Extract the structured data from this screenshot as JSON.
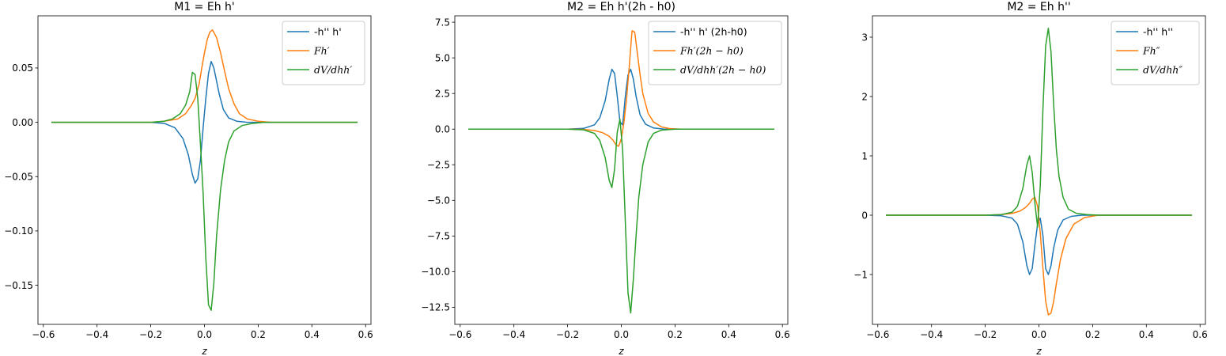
{
  "chart_data": [
    {
      "type": "line",
      "title": "M1 = Eh h'",
      "xlabel": "z",
      "ylabel": "",
      "xlim": [
        -0.62,
        0.62
      ],
      "ylim": [
        -0.186,
        0.098
      ],
      "xticks": [
        -0.6,
        -0.4,
        -0.2,
        0.0,
        0.2,
        0.4,
        0.6
      ],
      "xtick_labels": [
        "−0.6",
        "−0.4",
        "−0.2",
        "0.0",
        "0.2",
        "0.4",
        "0.6"
      ],
      "yticks": [
        -0.15,
        -0.1,
        -0.05,
        0.0,
        0.05
      ],
      "ytick_labels": [
        "−0.15",
        "−0.10",
        "−0.05",
        "0.00",
        "0.05"
      ],
      "legend_position": "top-right",
      "grid": false,
      "series": [
        {
          "name": "-h'' h'",
          "math": false,
          "color": "#1f77b4",
          "x": [
            -0.57,
            -0.2,
            -0.15,
            -0.11,
            -0.08,
            -0.06,
            -0.045,
            -0.035,
            -0.025,
            -0.015,
            -0.005,
            0.005,
            0.015,
            0.025,
            0.035,
            0.045,
            0.055,
            0.07,
            0.09,
            0.12,
            0.16,
            0.2,
            0.57
          ],
          "y": [
            0,
            0,
            -0.001,
            -0.005,
            -0.015,
            -0.03,
            -0.048,
            -0.056,
            -0.052,
            -0.035,
            -0.005,
            0.022,
            0.045,
            0.056,
            0.05,
            0.038,
            0.026,
            0.012,
            0.004,
            0.001,
            0,
            0,
            0
          ]
        },
        {
          "name": "Fh′",
          "math": true,
          "color": "#ff7f0e",
          "x": [
            -0.57,
            -0.2,
            -0.15,
            -0.1,
            -0.07,
            -0.05,
            -0.035,
            -0.02,
            -0.01,
            0.0,
            0.01,
            0.02,
            0.03,
            0.045,
            0.06,
            0.075,
            0.09,
            0.11,
            0.13,
            0.16,
            0.2,
            0.25,
            0.57
          ],
          "y": [
            0,
            0,
            0.001,
            0.003,
            0.008,
            0.015,
            0.022,
            0.035,
            0.05,
            0.064,
            0.076,
            0.083,
            0.085,
            0.078,
            0.064,
            0.047,
            0.031,
            0.017,
            0.008,
            0.003,
            0.001,
            0,
            0
          ]
        },
        {
          "name": "dV/dhh′",
          "math": true,
          "color": "#2ca02c",
          "x": [
            -0.57,
            -0.2,
            -0.15,
            -0.12,
            -0.09,
            -0.07,
            -0.055,
            -0.045,
            -0.035,
            -0.025,
            -0.015,
            -0.005,
            0.005,
            0.015,
            0.025,
            0.035,
            0.045,
            0.06,
            0.075,
            0.09,
            0.11,
            0.14,
            0.18,
            0.22,
            0.57
          ],
          "y": [
            0,
            0,
            0.001,
            0.003,
            0.008,
            0.016,
            0.028,
            0.046,
            0.044,
            0.022,
            -0.02,
            -0.065,
            -0.125,
            -0.168,
            -0.173,
            -0.148,
            -0.105,
            -0.062,
            -0.035,
            -0.018,
            -0.008,
            -0.003,
            -0.001,
            0,
            0
          ]
        }
      ]
    },
    {
      "type": "line",
      "title": "M2 = Eh h'(2h - h0)",
      "xlabel": "z",
      "ylabel": "",
      "xlim": [
        -0.62,
        0.62
      ],
      "ylim": [
        -13.7,
        7.95
      ],
      "xticks": [
        -0.6,
        -0.4,
        -0.2,
        0.0,
        0.2,
        0.4,
        0.6
      ],
      "xtick_labels": [
        "−0.6",
        "−0.4",
        "−0.2",
        "0.0",
        "0.2",
        "0.4",
        "0.6"
      ],
      "yticks": [
        -12.5,
        -10.0,
        -7.5,
        -5.0,
        -2.5,
        0.0,
        2.5,
        5.0,
        7.5
      ],
      "ytick_labels": [
        "−12.5",
        "−10.0",
        "−7.5",
        "−5.0",
        "−2.5",
        "0.0",
        "2.5",
        "5.0",
        "7.5"
      ],
      "legend_position": "top-right",
      "grid": false,
      "series": [
        {
          "name": "-h'' h' (2h-h0)",
          "math": false,
          "color": "#1f77b4",
          "x": [
            -0.57,
            -0.2,
            -0.14,
            -0.1,
            -0.08,
            -0.06,
            -0.045,
            -0.035,
            -0.025,
            -0.015,
            -0.005,
            0.005,
            0.015,
            0.025,
            0.035,
            0.045,
            0.055,
            0.07,
            0.09,
            0.12,
            0.16,
            0.2,
            0.57
          ],
          "y": [
            0,
            0,
            0.05,
            0.3,
            0.8,
            2.0,
            3.5,
            4.2,
            3.9,
            2.3,
            0.5,
            0.3,
            2.3,
            3.8,
            4.2,
            3.5,
            2.3,
            1.0,
            0.35,
            0.08,
            0,
            0,
            0
          ]
        },
        {
          "name": "Fh′(2h − h0)",
          "math": true,
          "color": "#ff7f0e",
          "x": [
            -0.57,
            -0.2,
            -0.14,
            -0.1,
            -0.07,
            -0.045,
            -0.03,
            -0.02,
            -0.01,
            0.0,
            0.01,
            0.02,
            0.03,
            0.04,
            0.05,
            0.06,
            0.07,
            0.08,
            0.1,
            0.12,
            0.15,
            0.18,
            0.22,
            0.57
          ],
          "y": [
            0,
            0,
            -0.02,
            -0.1,
            -0.25,
            -0.5,
            -0.8,
            -1.1,
            -1.2,
            -0.7,
            0.5,
            2.2,
            4.5,
            6.9,
            6.8,
            5.3,
            3.8,
            2.5,
            1.1,
            0.5,
            0.15,
            0.04,
            0,
            0
          ]
        },
        {
          "name": "dV/dhh′(2h − h0)",
          "math": true,
          "color": "#2ca02c",
          "x": [
            -0.57,
            -0.2,
            -0.14,
            -0.1,
            -0.08,
            -0.06,
            -0.045,
            -0.035,
            -0.025,
            -0.015,
            -0.005,
            0.005,
            0.015,
            0.025,
            0.035,
            0.045,
            0.055,
            0.065,
            0.08,
            0.1,
            0.12,
            0.15,
            0.2,
            0.57
          ],
          "y": [
            0,
            0,
            -0.05,
            -0.3,
            -0.8,
            -2.0,
            -3.6,
            -4.1,
            -2.8,
            -0.2,
            0.7,
            -1.5,
            -6.5,
            -11.5,
            -12.9,
            -10.5,
            -7.5,
            -4.8,
            -2.5,
            -0.9,
            -0.3,
            -0.07,
            0,
            0
          ]
        }
      ]
    },
    {
      "type": "line",
      "title": "M2 = Eh h''",
      "xlabel": "z",
      "ylabel": "",
      "xlim": [
        -0.62,
        0.62
      ],
      "ylim": [
        -1.84,
        3.36
      ],
      "xticks": [
        -0.6,
        -0.4,
        -0.2,
        0.0,
        0.2,
        0.4,
        0.6
      ],
      "xtick_labels": [
        "−0.6",
        "−0.4",
        "−0.2",
        "0.0",
        "0.2",
        "0.4",
        "0.6"
      ],
      "yticks": [
        -1,
        0,
        1,
        2,
        3
      ],
      "ytick_labels": [
        "−1",
        "0",
        "1",
        "2",
        "3"
      ],
      "legend_position": "top-right",
      "grid": false,
      "series": [
        {
          "name": "-h'' h''",
          "math": false,
          "color": "#1f77b4",
          "x": [
            -0.57,
            -0.2,
            -0.14,
            -0.1,
            -0.08,
            -0.06,
            -0.045,
            -0.035,
            -0.025,
            -0.015,
            -0.005,
            0.005,
            0.015,
            0.025,
            0.035,
            0.045,
            0.055,
            0.07,
            0.09,
            0.12,
            0.16,
            0.2,
            0.57
          ],
          "y": [
            0,
            0,
            -0.01,
            -0.05,
            -0.15,
            -0.45,
            -0.85,
            -1.0,
            -0.9,
            -0.5,
            -0.15,
            -0.05,
            -0.35,
            -0.9,
            -1.0,
            -0.85,
            -0.55,
            -0.25,
            -0.08,
            -0.02,
            0,
            0,
            0
          ]
        },
        {
          "name": "Fh″",
          "math": true,
          "color": "#ff7f0e",
          "x": [
            -0.57,
            -0.2,
            -0.14,
            -0.1,
            -0.07,
            -0.05,
            -0.035,
            -0.025,
            -0.015,
            -0.005,
            0.005,
            0.015,
            0.025,
            0.035,
            0.045,
            0.055,
            0.065,
            0.08,
            0.1,
            0.13,
            0.17,
            0.22,
            0.57
          ],
          "y": [
            0,
            0,
            0.01,
            0.03,
            0.07,
            0.13,
            0.2,
            0.27,
            0.3,
            0.15,
            -0.3,
            -0.9,
            -1.45,
            -1.68,
            -1.65,
            -1.45,
            -1.15,
            -0.75,
            -0.4,
            -0.15,
            -0.04,
            0,
            0
          ]
        },
        {
          "name": "dV/dhh″",
          "math": true,
          "color": "#2ca02c",
          "x": [
            -0.57,
            -0.2,
            -0.14,
            -0.1,
            -0.08,
            -0.06,
            -0.045,
            -0.035,
            -0.025,
            -0.015,
            -0.005,
            0.005,
            0.015,
            0.025,
            0.035,
            0.045,
            0.055,
            0.065,
            0.075,
            0.09,
            0.11,
            0.14,
            0.18,
            0.22,
            0.57
          ],
          "y": [
            0,
            0,
            0.01,
            0.05,
            0.15,
            0.45,
            0.85,
            1.0,
            0.72,
            0.2,
            -0.2,
            0.5,
            1.8,
            2.85,
            3.15,
            2.75,
            1.85,
            1.1,
            0.65,
            0.3,
            0.1,
            0.03,
            0.01,
            0,
            0
          ]
        }
      ]
    }
  ]
}
